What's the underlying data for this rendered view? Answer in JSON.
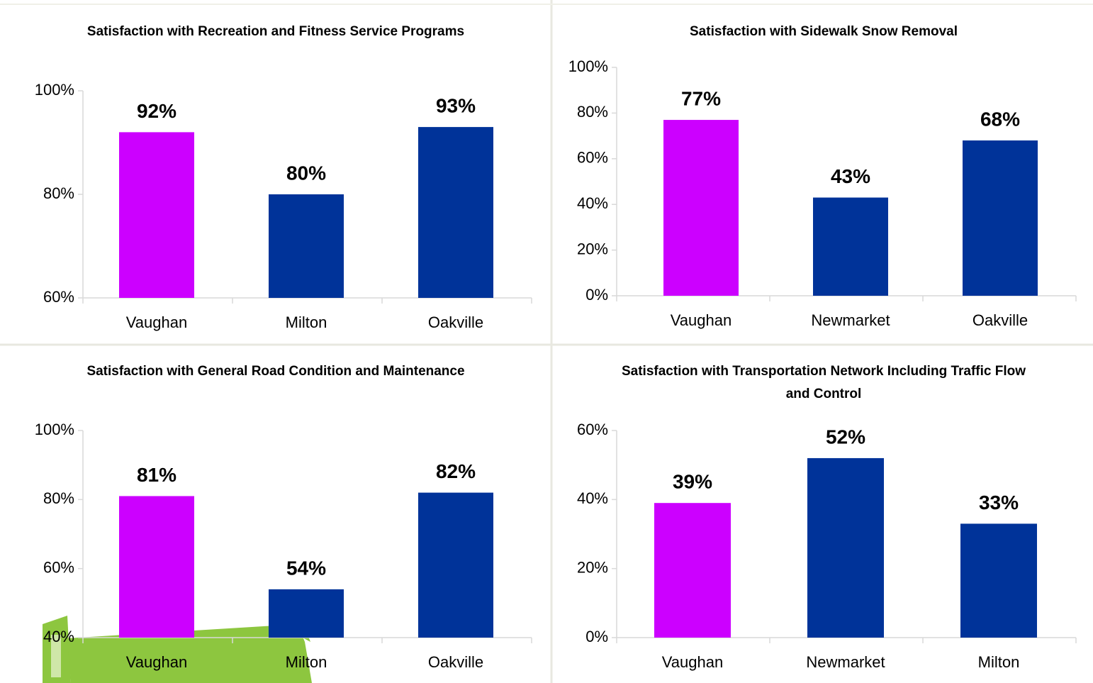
{
  "chart_data": [
    {
      "type": "bar",
      "title": "Satisfaction with Recreation and Fitness Service Programs",
      "categories": [
        "Vaughan",
        "Milton",
        "Oakville"
      ],
      "values": [
        92,
        80,
        93
      ],
      "value_labels": [
        "92%",
        "80%",
        "93%"
      ],
      "colors": [
        "#cc00ff",
        "#003399",
        "#003399"
      ],
      "ylim": [
        60,
        100
      ],
      "yticks": [
        {
          "value": 60,
          "label": "60%"
        },
        {
          "value": 80,
          "label": "80%"
        },
        {
          "value": 100,
          "label": "100%"
        }
      ],
      "grid": false
    },
    {
      "type": "bar",
      "title": "Satisfaction with Sidewalk Snow Removal",
      "categories": [
        "Vaughan",
        "Newmarket",
        "Oakville"
      ],
      "values": [
        77,
        43,
        68
      ],
      "value_labels": [
        "77%",
        "43%",
        "68%"
      ],
      "colors": [
        "#cc00ff",
        "#003399",
        "#003399"
      ],
      "ylim": [
        0,
        100
      ],
      "yticks": [
        {
          "value": 0,
          "label": "0%"
        },
        {
          "value": 20,
          "label": "20%"
        },
        {
          "value": 40,
          "label": "40%"
        },
        {
          "value": 60,
          "label": "60%"
        },
        {
          "value": 80,
          "label": "80%"
        },
        {
          "value": 100,
          "label": "100%"
        }
      ],
      "grid": false
    },
    {
      "type": "bar",
      "title": "Satisfaction with General Road Condition and Maintenance",
      "categories": [
        "Vaughan",
        "Milton",
        "Oakville"
      ],
      "values": [
        81,
        54,
        82
      ],
      "value_labels": [
        "81%",
        "54%",
        "82%"
      ],
      "colors": [
        "#cc00ff",
        "#003399",
        "#003399"
      ],
      "ylim": [
        40,
        100
      ],
      "yticks": [
        {
          "value": 40,
          "label": "40%"
        },
        {
          "value": 60,
          "label": "60%"
        },
        {
          "value": 80,
          "label": "80%"
        },
        {
          "value": 100,
          "label": "100%"
        }
      ],
      "grid": false
    },
    {
      "type": "bar",
      "title": "Satisfaction with Transportation Network Including Traffic Flow and Control",
      "categories": [
        "Vaughan",
        "Newmarket",
        "Milton"
      ],
      "values": [
        39,
        52,
        33
      ],
      "value_labels": [
        "39%",
        "52%",
        "33%"
      ],
      "colors": [
        "#cc00ff",
        "#003399",
        "#003399"
      ],
      "ylim": [
        0,
        60
      ],
      "yticks": [
        {
          "value": 0,
          "label": "0%"
        },
        {
          "value": 20,
          "label": "20%"
        },
        {
          "value": 40,
          "label": "40%"
        },
        {
          "value": 60,
          "label": "60%"
        }
      ],
      "grid": false
    }
  ]
}
